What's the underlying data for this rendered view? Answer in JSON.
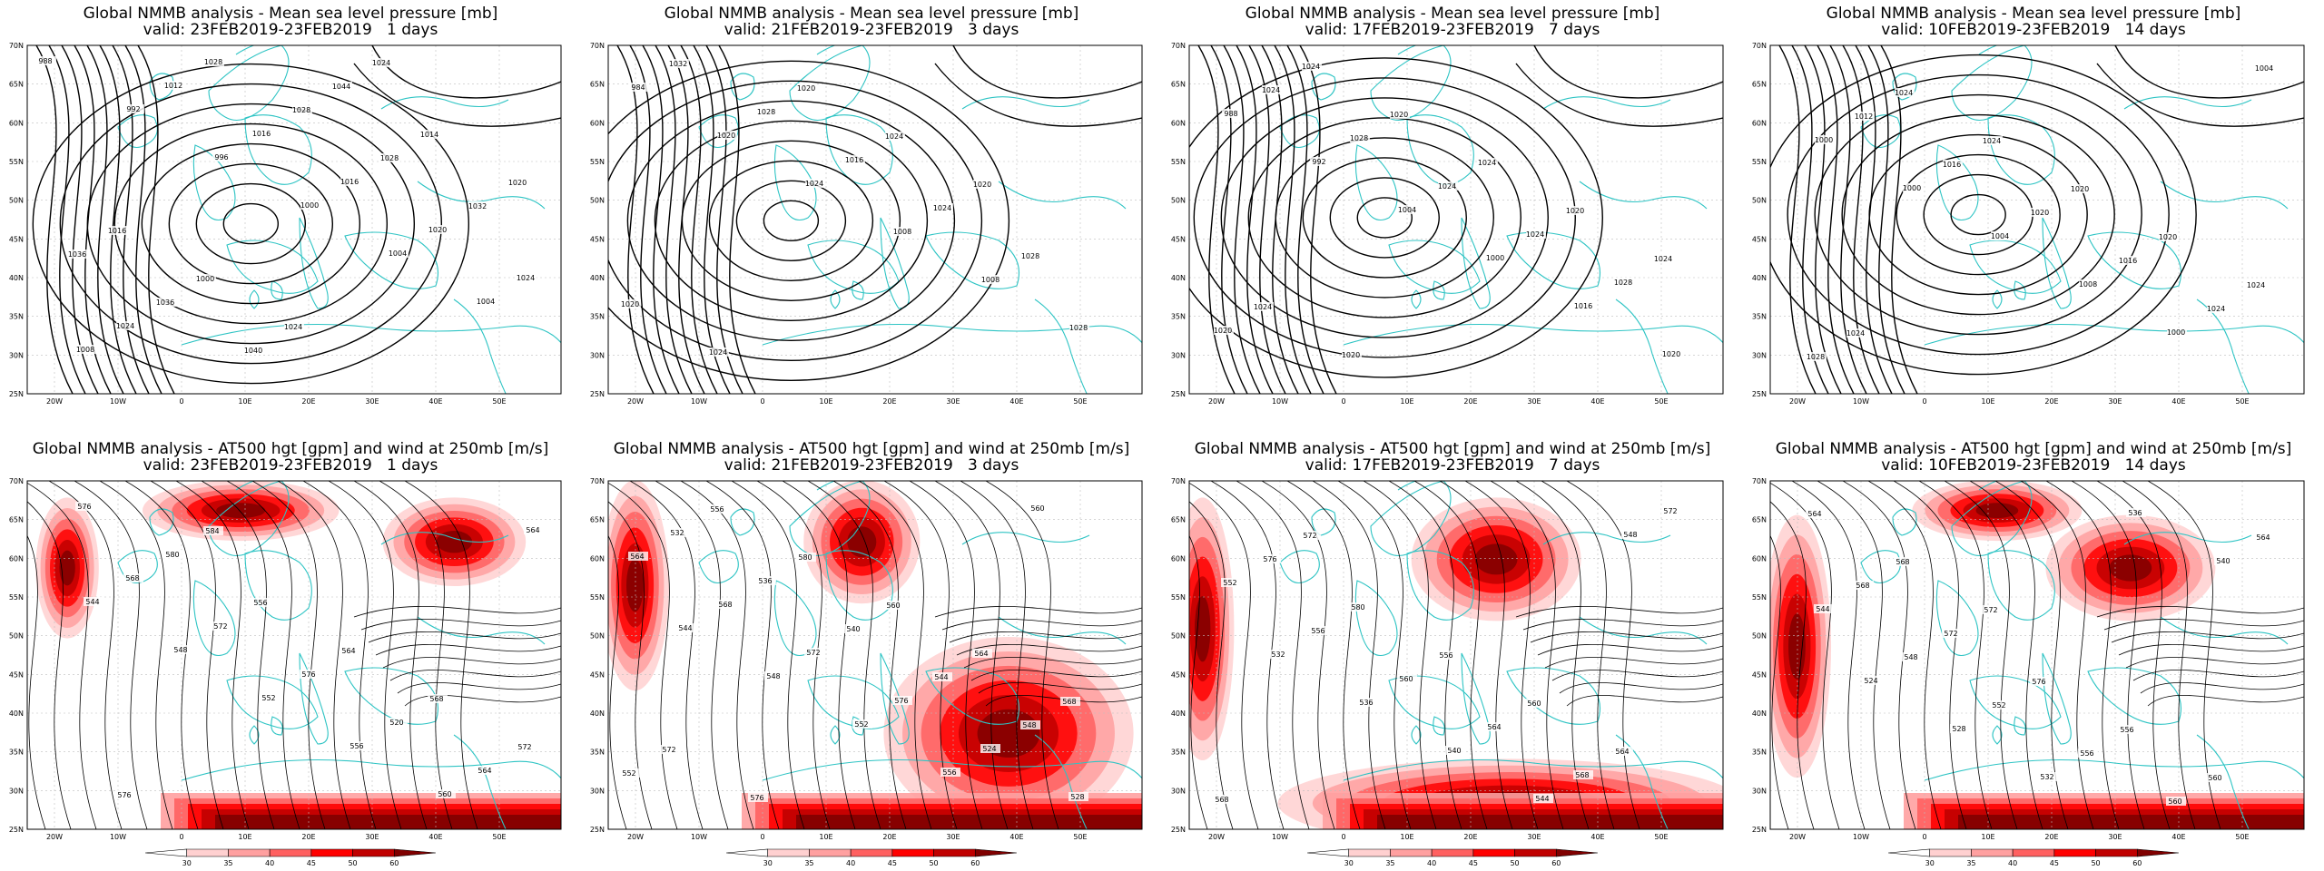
{
  "panels": [
    {
      "id": "mslp-1d",
      "title1": "Global NMMB analysis - Mean sea level pressure [mb]",
      "title2": "valid: 23FEB2019-23FEB2019   1 days",
      "kind": "mslp",
      "contour_labels": [
        "988",
        "992",
        "996",
        "1000",
        "1004",
        "1004",
        "1008",
        "1012",
        "1016",
        "1016",
        "1020",
        "1024",
        "1024",
        "1028",
        "1028",
        "1028",
        "1032",
        "1036",
        "1036",
        "1040",
        "1044",
        "1014",
        "1020",
        "1016",
        "1000",
        "1024",
        "1024"
      ]
    },
    {
      "id": "mslp-3d",
      "title1": "Global NMMB analysis - Mean sea level pressure [mb]",
      "title2": "valid: 21FEB2019-23FEB2019   3 days",
      "kind": "mslp",
      "contour_labels": [
        "984",
        "1020",
        "1024",
        "1008",
        "1008",
        "1028",
        "1032",
        "1028",
        "1016",
        "1024",
        "1028",
        "1020",
        "1024",
        "1020",
        "1024",
        "1020"
      ]
    },
    {
      "id": "mslp-7d",
      "title1": "Global NMMB analysis - Mean sea level pressure [mb]",
      "title2": "valid: 17FEB2019-23FEB2019   7 days",
      "kind": "mslp",
      "contour_labels": [
        "988",
        "992",
        "1004",
        "1000",
        "1016",
        "1020",
        "1024",
        "1028",
        "1024",
        "1024",
        "1028",
        "1020",
        "1024",
        "1020",
        "1024",
        "1020",
        "1024",
        "1024",
        "1020"
      ]
    },
    {
      "id": "mslp-14d",
      "title1": "Global NMMB analysis - Mean sea level pressure [mb]",
      "title2": "valid: 10FEB2019-23FEB2019   14 days",
      "kind": "mslp",
      "contour_labels": [
        "1000",
        "1000",
        "1004",
        "1008",
        "1000",
        "1004",
        "1012",
        "1016",
        "1020",
        "1016",
        "1024",
        "1028",
        "1024",
        "1024",
        "1020",
        "1020",
        "1024",
        "1024"
      ]
    },
    {
      "id": "z500-1d",
      "title1": "Global NMMB analysis - AT500 hgt [gpm] and wind at 250mb [m/s]",
      "title2": "valid: 23FEB2019-23FEB2019   1 days",
      "kind": "z500",
      "contour_labels": [
        "544",
        "548",
        "552",
        "556",
        "560",
        "564",
        "568",
        "572",
        "576",
        "520",
        "564",
        "576",
        "580",
        "556",
        "564",
        "568",
        "572",
        "576",
        "584"
      ]
    },
    {
      "id": "z500-3d",
      "title1": "Global NMMB analysis - AT500 hgt [gpm] and wind at 250mb [m/s]",
      "title2": "valid: 21FEB2019-23FEB2019   3 days",
      "kind": "z500",
      "contour_labels": [
        "544",
        "548",
        "552",
        "556",
        "560",
        "564",
        "568",
        "572",
        "576",
        "524",
        "528",
        "532",
        "536",
        "540",
        "544",
        "548",
        "552",
        "556",
        "580",
        "560",
        "564",
        "568",
        "572",
        "576"
      ]
    },
    {
      "id": "z500-7d",
      "title1": "Global NMMB analysis - AT500 hgt [gpm] and wind at 250mb [m/s]",
      "title2": "valid: 17FEB2019-23FEB2019   7 days",
      "kind": "z500",
      "contour_labels": [
        "532",
        "536",
        "540",
        "544",
        "548",
        "552",
        "556",
        "560",
        "564",
        "568",
        "572",
        "576",
        "580",
        "556",
        "560",
        "564",
        "568",
        "572"
      ]
    },
    {
      "id": "z500-14d",
      "title1": "Global NMMB analysis - AT500 hgt [gpm] and wind at 250mb [m/s]",
      "title2": "valid: 10FEB2019-23FEB2019   14 days",
      "kind": "z500",
      "contour_labels": [
        "524",
        "528",
        "532",
        "536",
        "540",
        "544",
        "548",
        "552",
        "556",
        "560",
        "564",
        "568",
        "572",
        "576",
        "556",
        "560",
        "564",
        "568",
        "572"
      ]
    }
  ],
  "axes": {
    "lat_labels": [
      "70N",
      "65N",
      "60N",
      "55N",
      "50N",
      "45N",
      "40N",
      "35N",
      "30N",
      "25N"
    ],
    "lon_labels": [
      "20W",
      "10W",
      "0",
      "10E",
      "20E",
      "30E",
      "40E",
      "50E"
    ]
  },
  "colorbar": {
    "ticks": [
      "30",
      "35",
      "40",
      "45",
      "50",
      "60"
    ],
    "colors": [
      "#ffffff",
      "#ffd0d0",
      "#ffa0a0",
      "#ff6060",
      "#ff0000",
      "#c00000",
      "#800000"
    ]
  },
  "colors": {
    "coast": "#2ec4c4",
    "contour": "#000000",
    "grid": "#bdbdbd"
  }
}
